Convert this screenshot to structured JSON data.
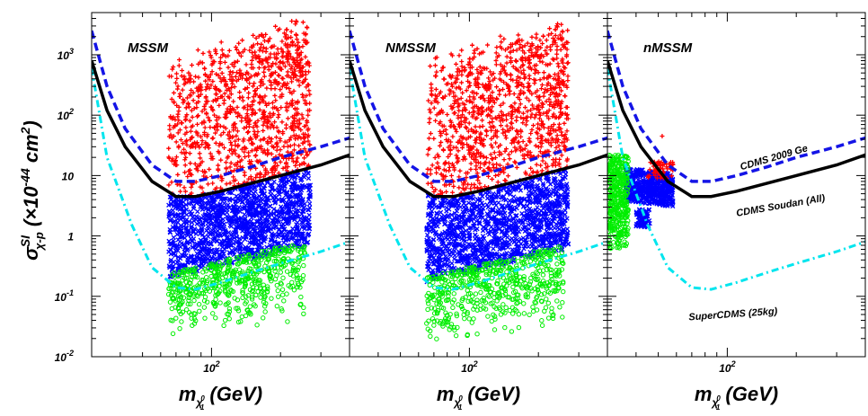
{
  "chart_data": {
    "type": "scatter",
    "x_scale": "log",
    "y_scale": "log",
    "xlim": [
      30,
      400
    ],
    "ylim": [
      0.01,
      5000
    ],
    "x_tick_label": "10",
    "x_tick_exp": "2",
    "y_tick_labels": [
      {
        "base": "10",
        "exp": "-2",
        "value": 0.01
      },
      {
        "base": "10",
        "exp": "-1",
        "value": 0.1
      },
      {
        "base": "1",
        "exp": "",
        "value": 1
      },
      {
        "base": "10",
        "exp": "",
        "value": 10
      },
      {
        "base": "10",
        "exp": "2",
        "value": 100
      },
      {
        "base": "10",
        "exp": "3",
        "value": 1000
      }
    ],
    "xlabel": {
      "main": "m",
      "sub": "χ",
      "subsub": "0",
      "subidx": "1",
      "unit": " (GeV)"
    },
    "ylabel": {
      "main": "σ",
      "sup": "SI",
      "sub": "χ-p",
      "unit": " (×10",
      "unit_exp": "-44",
      "unit_end": " cm",
      "unit_exp2": "2",
      "close": ")"
    },
    "colors": {
      "cdms2009": "#1414e6",
      "soudan": "#000000",
      "supercdms": "#00e5ee",
      "excluded": "#ff0000",
      "allowed_blue": "#0000ff",
      "projected_green": "#00ee00"
    },
    "curves": {
      "cdms2009": [
        [
          30,
          2500
        ],
        [
          35,
          300
        ],
        [
          42,
          60
        ],
        [
          55,
          15
        ],
        [
          70,
          8
        ],
        [
          85,
          8
        ],
        [
          110,
          10
        ],
        [
          150,
          14
        ],
        [
          200,
          20
        ],
        [
          300,
          30
        ],
        [
          400,
          42
        ]
      ],
      "soudan": [
        [
          30,
          800
        ],
        [
          35,
          120
        ],
        [
          42,
          30
        ],
        [
          55,
          8
        ],
        [
          70,
          4.5
        ],
        [
          85,
          4.5
        ],
        [
          110,
          5.5
        ],
        [
          150,
          7.5
        ],
        [
          200,
          10
        ],
        [
          300,
          15
        ],
        [
          400,
          22
        ]
      ],
      "supercdms": [
        [
          30,
          600
        ],
        [
          35,
          20
        ],
        [
          45,
          1.5
        ],
        [
          55,
          0.3
        ],
        [
          70,
          0.14
        ],
        [
          85,
          0.13
        ],
        [
          110,
          0.17
        ],
        [
          150,
          0.25
        ],
        [
          200,
          0.35
        ],
        [
          300,
          0.55
        ],
        [
          400,
          0.8
        ]
      ]
    },
    "panels": [
      {
        "name": "MSSM",
        "label_cdms2009": "",
        "label_soudan": "",
        "label_supercdms": "",
        "regions": {
          "xmin": 65,
          "xmax": 270,
          "red_top": 1500,
          "red_top_max": 4000,
          "blue_bottom": 0.15,
          "green_bottom": 0.02
        }
      },
      {
        "name": "NMSSM",
        "label_cdms2009": "",
        "label_soudan": "",
        "label_supercdms": "",
        "regions": {
          "xmin": 65,
          "xmax": 270,
          "red_top": 1500,
          "red_top_max": 5000,
          "blue_bottom": 0.13,
          "green_bottom": 0.015
        }
      },
      {
        "name": "nMSSM",
        "label_cdms2009": "CDMS 2009 Ge",
        "label_soudan": "CDMS Soudan (All)",
        "label_supercdms": "SuperCDMS (25kg)",
        "regions": {
          "green_xmin": 30,
          "green_xmax": 37,
          "blue_xmin": 36,
          "blue_xmax": 58
        }
      }
    ]
  }
}
